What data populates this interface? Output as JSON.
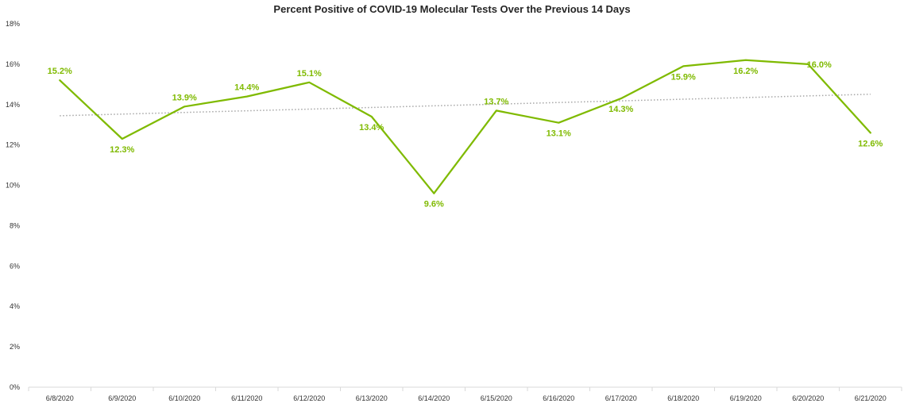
{
  "chart_data": {
    "type": "line",
    "title": "Percent Positive of COVID-19 Molecular Tests Over the Previous 14 Days",
    "xlabel": "",
    "ylabel": "",
    "categories": [
      "6/8/2020",
      "6/9/2020",
      "6/10/2020",
      "6/11/2020",
      "6/12/2020",
      "6/13/2020",
      "6/14/2020",
      "6/15/2020",
      "6/16/2020",
      "6/17/2020",
      "6/18/2020",
      "6/19/2020",
      "6/20/2020",
      "6/21/2020"
    ],
    "series": [
      {
        "values": [
          15.2,
          12.3,
          13.9,
          14.4,
          15.1,
          13.4,
          9.6,
          13.7,
          13.1,
          14.3,
          15.9,
          16.2,
          16.0,
          12.6
        ],
        "labels": [
          "15.2%",
          "12.3%",
          "13.9%",
          "14.4%",
          "15.1%",
          "13.4%",
          "9.6%",
          "13.7%",
          "13.1%",
          "14.3%",
          "15.9%",
          "16.2%",
          "16.0%",
          "12.6%"
        ],
        "color": "#7fba00"
      }
    ],
    "trendline": {
      "type": "linear",
      "style": "dotted",
      "color": "#a6a6a6"
    },
    "y_ticks": [
      "0%",
      "2%",
      "4%",
      "6%",
      "8%",
      "10%",
      "12%",
      "14%",
      "16%",
      "18%"
    ],
    "ylim": [
      0,
      18
    ],
    "grid": false,
    "legend": "none"
  }
}
